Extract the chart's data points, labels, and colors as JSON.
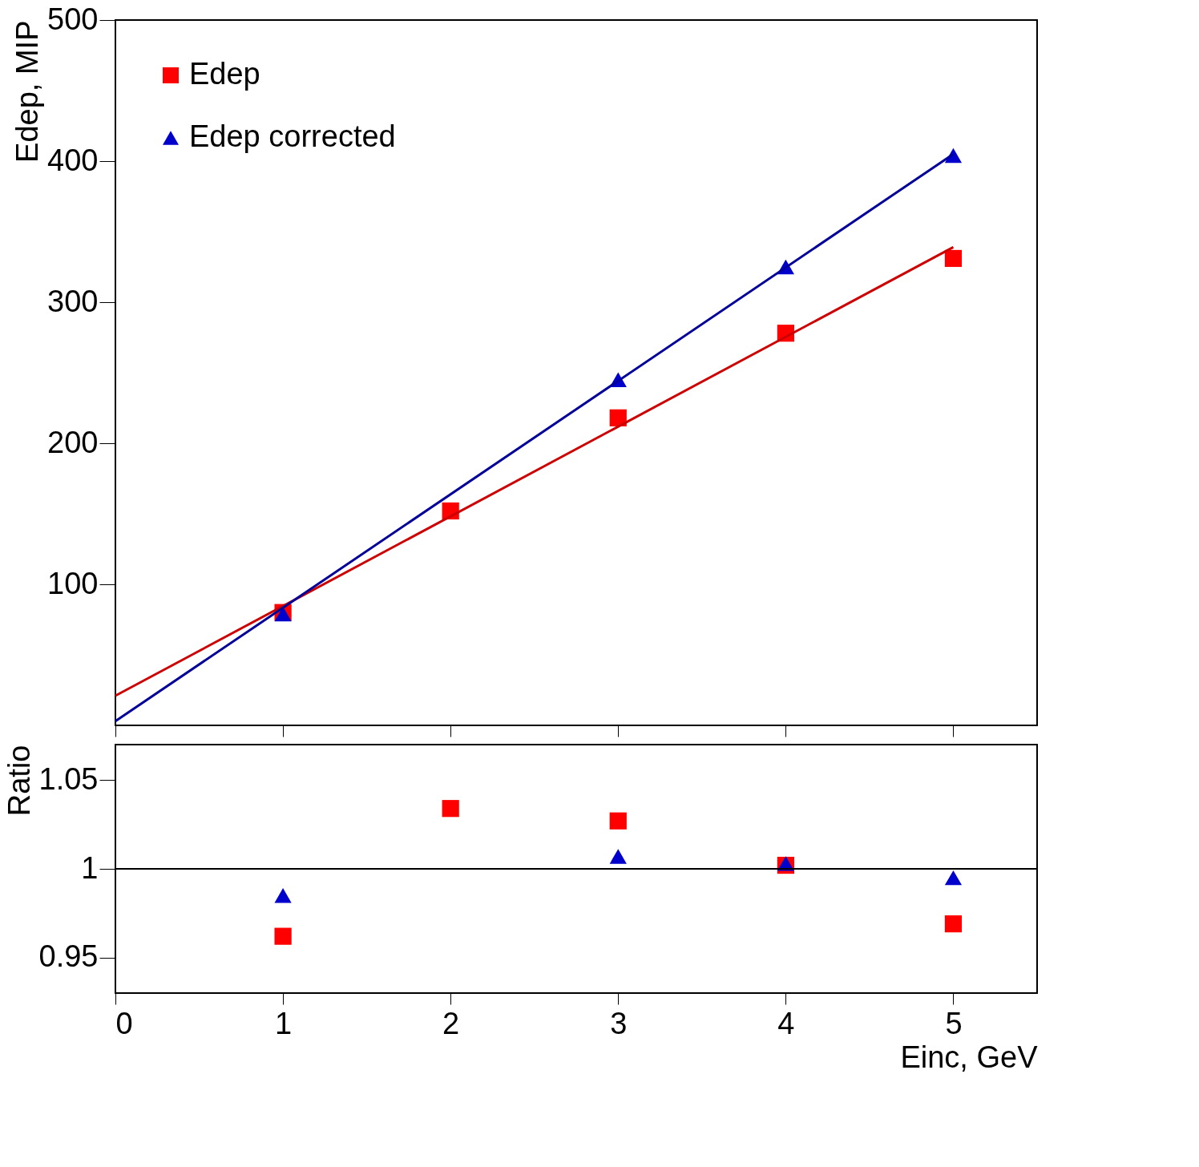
{
  "chart_data": [
    {
      "type": "scatter",
      "ylabel": "Edep, MIP",
      "xlim": [
        0,
        5.5
      ],
      "xticks": [
        0,
        1,
        2,
        3,
        4,
        5
      ],
      "ylim": [
        0,
        500
      ],
      "yticks": [
        100,
        200,
        300,
        400,
        500
      ],
      "tick_labels": "y",
      "legend": "top left",
      "grid": false,
      "series": [
        {
          "name": "Edep",
          "marker": "square",
          "color": "#ff0000",
          "x": [
            1,
            2,
            3,
            4,
            5
          ],
          "values": [
            80,
            152,
            218,
            278,
            331
          ]
        },
        {
          "name": "Edep corrected",
          "marker": "triangle",
          "color": "#0000cc",
          "x": [
            1,
            3,
            4,
            5
          ],
          "values": [
            79,
            245,
            325,
            404
          ]
        },
        {
          "type": "line",
          "color": "#cc0000",
          "x": [
            0,
            5
          ],
          "values": [
            21,
            339
          ]
        },
        {
          "type": "line",
          "color": "#000099",
          "x": [
            0,
            5
          ],
          "values": [
            3,
            405
          ]
        }
      ]
    },
    {
      "type": "scatter",
      "ylabel": "Ratio",
      "xlabel": "Einc, GeV",
      "xlim": [
        0,
        5.5
      ],
      "xticks": [
        0,
        1,
        2,
        3,
        4,
        5
      ],
      "ylim": [
        0.93,
        1.07
      ],
      "yticks": [
        0.95,
        1,
        1.05
      ],
      "grid": false,
      "ref_lines": [
        {
          "axis": "y",
          "value": 1,
          "color": "#000000"
        }
      ],
      "series": [
        {
          "marker": "square",
          "color": "#ff0000",
          "x": [
            1,
            2,
            3,
            4,
            5
          ],
          "values": [
            0.962,
            1.034,
            1.027,
            1.002,
            0.969
          ]
        },
        {
          "marker": "triangle",
          "color": "#0000cc",
          "x": [
            1,
            3,
            4,
            5
          ],
          "values": [
            0.985,
            1.007,
            1.003,
            0.995
          ]
        }
      ]
    }
  ]
}
